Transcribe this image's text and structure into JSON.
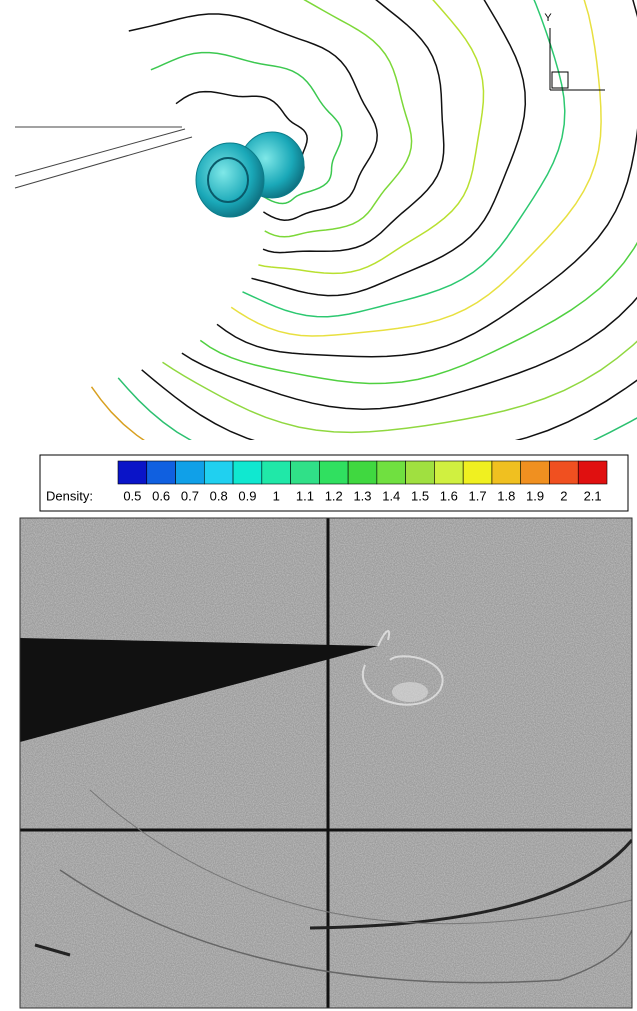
{
  "colorbar": {
    "label": "Density:",
    "ticks": [
      0.5,
      0.6,
      0.7,
      0.8,
      0.9,
      1,
      1.1,
      1.2,
      1.3,
      1.4,
      1.5,
      1.6,
      1.7,
      1.8,
      1.9,
      2,
      2.1
    ],
    "colors": [
      "#0a14c8",
      "#1060e0",
      "#10a0e8",
      "#20d0f0",
      "#10e8d0",
      "#20e8a8",
      "#30e088",
      "#30e060",
      "#40d840",
      "#70e040",
      "#a0e040",
      "#d0f040",
      "#f0f020",
      "#f0c020",
      "#f09020",
      "#f05020",
      "#e01010"
    ]
  },
  "axes_triad": {
    "y_label": "Y"
  }
}
